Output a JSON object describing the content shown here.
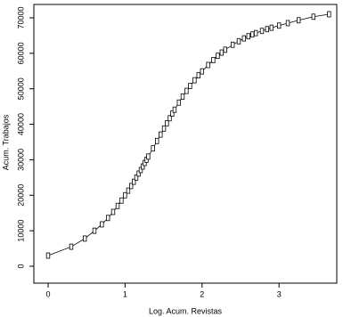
{
  "chart_data": {
    "type": "line",
    "x_label": "Log. Acum. Revistas",
    "y_label": "Acum. Trabajos",
    "xlim": [
      -0.185,
      3.75
    ],
    "ylim": [
      -4770,
      73760
    ],
    "xticks": [
      0,
      1,
      2,
      3
    ],
    "yticks": [
      0,
      10000,
      20000,
      30000,
      40000,
      50000,
      60000,
      70000
    ],
    "color": "#000000",
    "x": [
      0,
      0.301,
      0.477,
      0.602,
      0.699,
      0.778,
      0.845,
      0.903,
      0.954,
      1.0,
      1.041,
      1.079,
      1.114,
      1.146,
      1.176,
      1.204,
      1.23,
      1.255,
      1.279,
      1.301,
      1.362,
      1.415,
      1.462,
      1.505,
      1.544,
      1.58,
      1.613,
      1.643,
      1.699,
      1.748,
      1.799,
      1.845,
      1.903,
      1.954,
      2.0,
      2.079,
      2.146,
      2.204,
      2.255,
      2.301,
      2.398,
      2.477,
      2.544,
      2.602,
      2.653,
      2.699,
      2.778,
      2.845,
      2.903,
      3.0,
      3.114,
      3.255,
      3.447,
      3.65
    ],
    "values": [
      3000,
      5500,
      7800,
      10000,
      11800,
      13600,
      15300,
      17000,
      18500,
      20000,
      21300,
      22600,
      23800,
      25000,
      26100,
      27100,
      28100,
      29100,
      30000,
      30900,
      33200,
      35300,
      37100,
      38800,
      40300,
      41700,
      43000,
      44100,
      46100,
      47800,
      49400,
      50800,
      52400,
      53800,
      54900,
      56700,
      58100,
      59300,
      60200,
      61000,
      62400,
      63400,
      64200,
      64800,
      65300,
      65700,
      66300,
      66800,
      67200,
      67800,
      68500,
      69300,
      70300,
      71000
    ]
  }
}
